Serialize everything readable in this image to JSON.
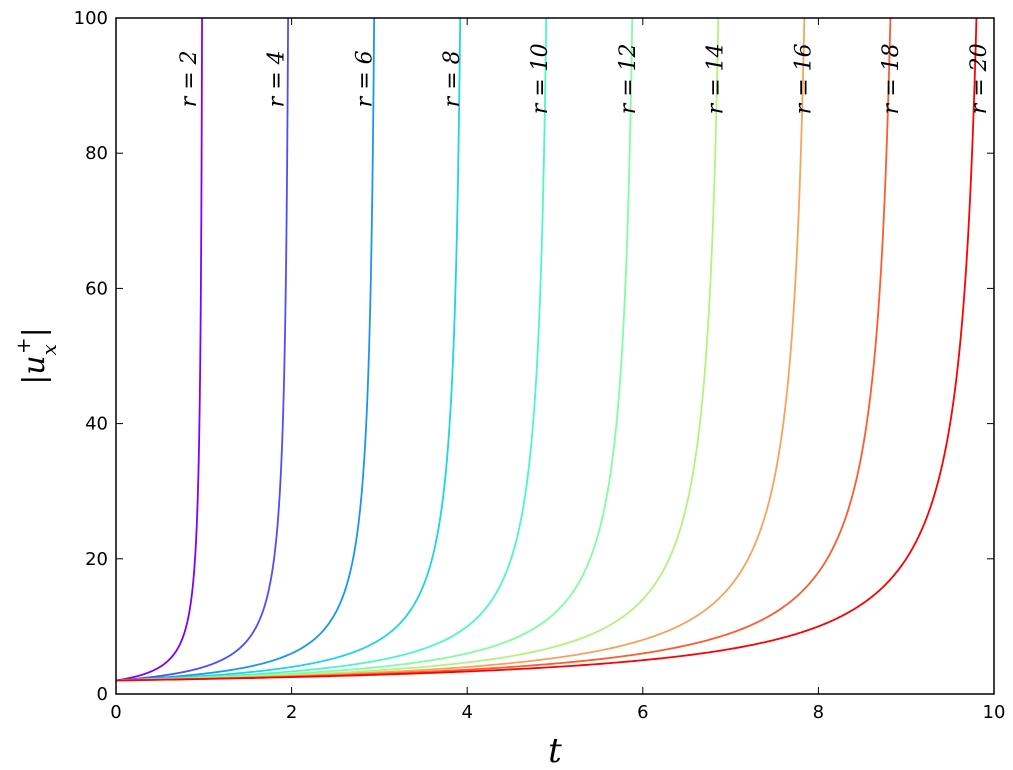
{
  "chart_data": {
    "type": "line",
    "xlabel": "t",
    "ylabel": "|u_x^+|",
    "xlim": [
      0,
      10
    ],
    "ylim": [
      0,
      100
    ],
    "x_ticks": [
      "0",
      "2",
      "4",
      "6",
      "8",
      "10"
    ],
    "y_ticks": [
      "0",
      "20",
      "40",
      "60",
      "80",
      "100"
    ],
    "grid": false,
    "series": [
      {
        "name": "r = 2",
        "r": 2,
        "color": "#8000ff"
      },
      {
        "name": "r = 4",
        "r": 4,
        "color": "#4e4dfc"
      },
      {
        "name": "r = 6",
        "r": 6,
        "color": "#1996f3"
      },
      {
        "name": "r = 8",
        "r": 8,
        "color": "#1cd6e0"
      },
      {
        "name": "r = 10",
        "r": 10,
        "color": "#4df7c5"
      },
      {
        "name": "r = 12",
        "r": 12,
        "color": "#80fea2"
      },
      {
        "name": "r = 14",
        "r": 14,
        "color": "#b3f37d"
      },
      {
        "name": "r = 16",
        "r": 16,
        "color": "#f7a35c"
      },
      {
        "name": "r = 18",
        "r": 18,
        "color": "#ff5a30"
      },
      {
        "name": "r = 20",
        "r": 20,
        "color": "#ff0000"
      }
    ]
  }
}
